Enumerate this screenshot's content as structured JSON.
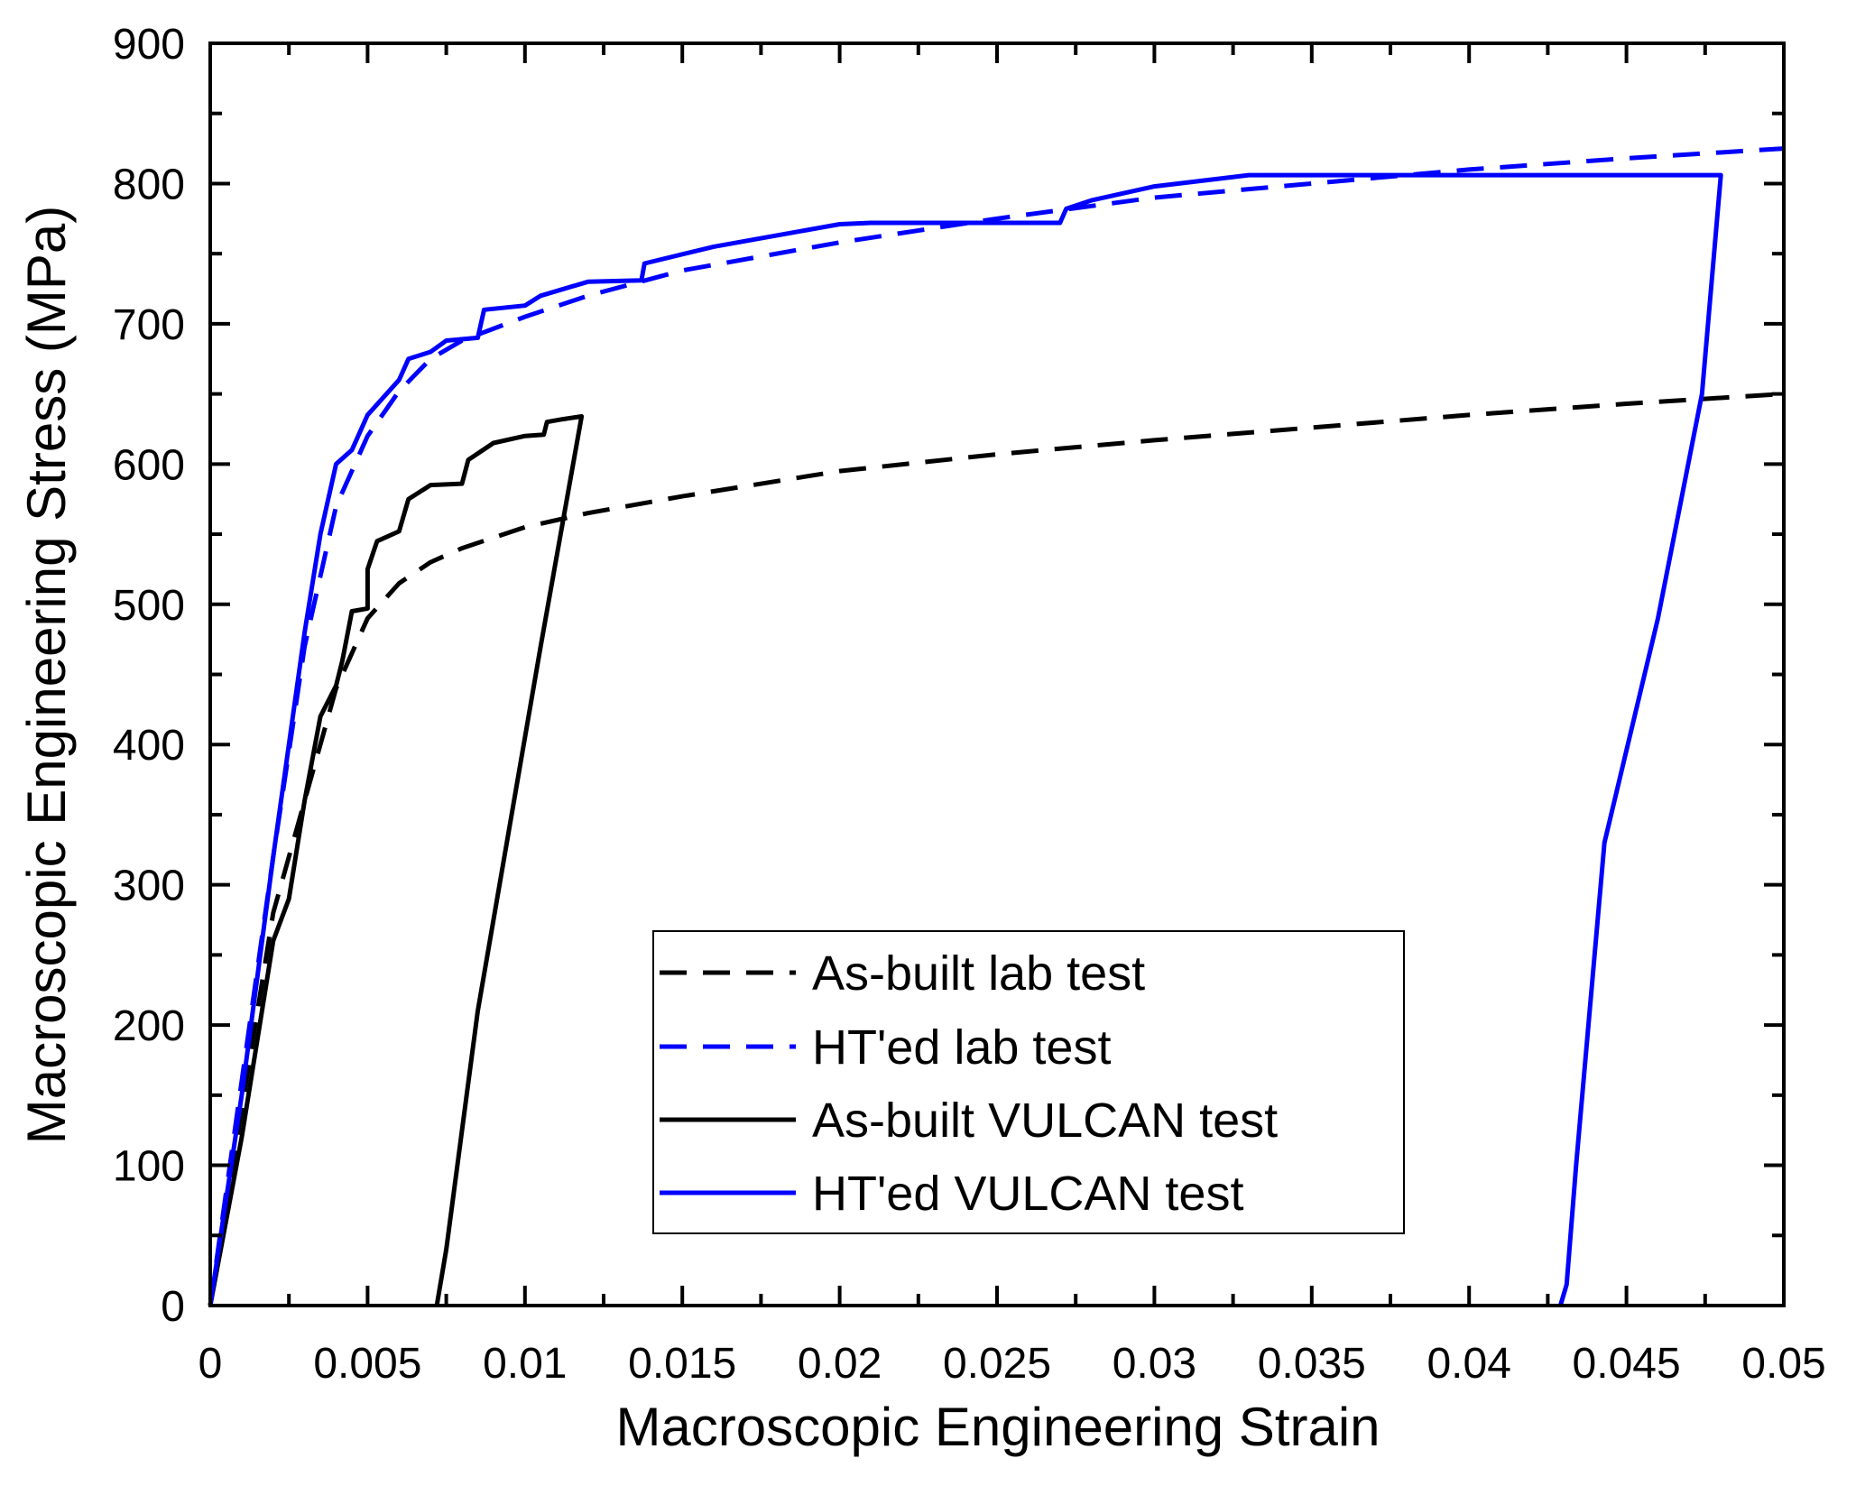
{
  "chart_data": {
    "type": "line",
    "title": "",
    "xlabel": "Macroscopic Engineering Strain",
    "ylabel": "Macroscopic Engineering Stress (MPa)",
    "xlim": [
      0,
      0.05
    ],
    "ylim": [
      0,
      900
    ],
    "xticks": [
      "0",
      "0.005",
      "0.01",
      "0.015",
      "0.02",
      "0.025",
      "0.03",
      "0.035",
      "0.04",
      "0.045",
      "0.05"
    ],
    "yticks": [
      "0",
      "100",
      "200",
      "300",
      "400",
      "500",
      "600",
      "700",
      "800",
      "900"
    ],
    "grid": false,
    "legend_position": "bottom-center",
    "series": [
      {
        "name": "As-built lab test",
        "color": "#000000",
        "dash": true,
        "points": [
          [
            0,
            0
          ],
          [
            0.002,
            280
          ],
          [
            0.004,
            440
          ],
          [
            0.005,
            490
          ],
          [
            0.006,
            515
          ],
          [
            0.007,
            530
          ],
          [
            0.008,
            540
          ],
          [
            0.01,
            555
          ],
          [
            0.012,
            565
          ],
          [
            0.015,
            577
          ],
          [
            0.02,
            595
          ],
          [
            0.025,
            607
          ],
          [
            0.03,
            617
          ],
          [
            0.035,
            626
          ],
          [
            0.04,
            635
          ],
          [
            0.045,
            643
          ],
          [
            0.05,
            650
          ]
        ]
      },
      {
        "name": "HT'ed lab test",
        "color": "#0000ff",
        "dash": true,
        "points": [
          [
            0,
            0
          ],
          [
            0.002,
            320
          ],
          [
            0.003,
            470
          ],
          [
            0.004,
            570
          ],
          [
            0.005,
            620
          ],
          [
            0.006,
            652
          ],
          [
            0.007,
            675
          ],
          [
            0.008,
            688
          ],
          [
            0.01,
            705
          ],
          [
            0.012,
            720
          ],
          [
            0.015,
            738
          ],
          [
            0.02,
            758
          ],
          [
            0.025,
            775
          ],
          [
            0.03,
            790
          ],
          [
            0.035,
            800
          ],
          [
            0.04,
            810
          ],
          [
            0.045,
            818
          ],
          [
            0.05,
            825
          ]
        ]
      },
      {
        "name": "As-built VULCAN test",
        "color": "#000000",
        "dash": false,
        "points": [
          [
            0,
            0
          ],
          [
            0.001,
            120
          ],
          [
            0.002,
            260
          ],
          [
            0.0025,
            290
          ],
          [
            0.003,
            360
          ],
          [
            0.0035,
            420
          ],
          [
            0.004,
            442
          ],
          [
            0.0042,
            460
          ],
          [
            0.0045,
            495
          ],
          [
            0.005,
            497
          ],
          [
            0.005,
            525
          ],
          [
            0.0053,
            545
          ],
          [
            0.006,
            552
          ],
          [
            0.0063,
            575
          ],
          [
            0.007,
            585
          ],
          [
            0.008,
            586
          ],
          [
            0.0082,
            603
          ],
          [
            0.009,
            615
          ],
          [
            0.01,
            620
          ],
          [
            0.0106,
            621
          ],
          [
            0.0107,
            630
          ],
          [
            0.0112,
            632
          ],
          [
            0.0118,
            634
          ],
          [
            0.0105,
            470
          ],
          [
            0.0085,
            210
          ],
          [
            0.0075,
            40
          ],
          [
            0.0072,
            0
          ]
        ]
      },
      {
        "name": "HT'ed VULCAN test",
        "color": "#0000ff",
        "dash": false,
        "points": [
          [
            0,
            0
          ],
          [
            0.001,
            150
          ],
          [
            0.002,
            320
          ],
          [
            0.003,
            480
          ],
          [
            0.0035,
            550
          ],
          [
            0.004,
            600
          ],
          [
            0.0045,
            610
          ],
          [
            0.005,
            635
          ],
          [
            0.006,
            660
          ],
          [
            0.0063,
            675
          ],
          [
            0.007,
            680
          ],
          [
            0.0075,
            688
          ],
          [
            0.0085,
            690
          ],
          [
            0.0087,
            710
          ],
          [
            0.01,
            713
          ],
          [
            0.0105,
            720
          ],
          [
            0.012,
            730
          ],
          [
            0.0137,
            731
          ],
          [
            0.0138,
            743
          ],
          [
            0.016,
            755
          ],
          [
            0.02,
            771
          ],
          [
            0.021,
            772
          ],
          [
            0.027,
            772
          ],
          [
            0.0272,
            782
          ],
          [
            0.028,
            788
          ],
          [
            0.03,
            798
          ],
          [
            0.033,
            806
          ],
          [
            0.048,
            806
          ],
          [
            0.0474,
            650
          ],
          [
            0.046,
            490
          ],
          [
            0.0443,
            330
          ],
          [
            0.0434,
            100
          ],
          [
            0.0431,
            15
          ],
          [
            0.0429,
            0
          ]
        ]
      }
    ]
  }
}
